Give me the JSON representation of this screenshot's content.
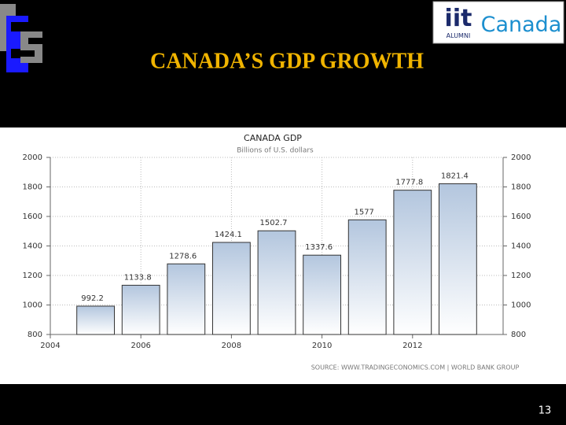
{
  "slide_title": "CANADA’S GDP GROWTH",
  "page_number": "13",
  "logo": {
    "mark": "iit",
    "sub": "ALUMNI",
    "word": "Canada"
  },
  "chart_data": {
    "type": "bar",
    "title": "CANADA GDP",
    "subtitle": "Billions of U.S. dollars",
    "source": "SOURCE: WWW.TRADINGECONOMICS.COM | WORLD BANK GROUP",
    "x": [
      2005,
      2006,
      2007,
      2008,
      2009,
      2010,
      2011,
      2012,
      2013
    ],
    "values": [
      992.2,
      1133.8,
      1278.6,
      1424.1,
      1502.7,
      1337.6,
      1577,
      1777.8,
      1821.4
    ],
    "color": "#b3c6de",
    "xlim": [
      2004,
      2014
    ],
    "xticks": [
      2004,
      2006,
      2008,
      2010,
      2012
    ],
    "ylim": [
      800,
      2000
    ],
    "yticks": [
      800,
      1000,
      1200,
      1400,
      1600,
      1800,
      2000
    ],
    "y2lim": [
      800,
      2000
    ],
    "y2ticks": [
      800,
      1000,
      1200,
      1400,
      1600,
      1800,
      2000
    ],
    "grid": true
  }
}
